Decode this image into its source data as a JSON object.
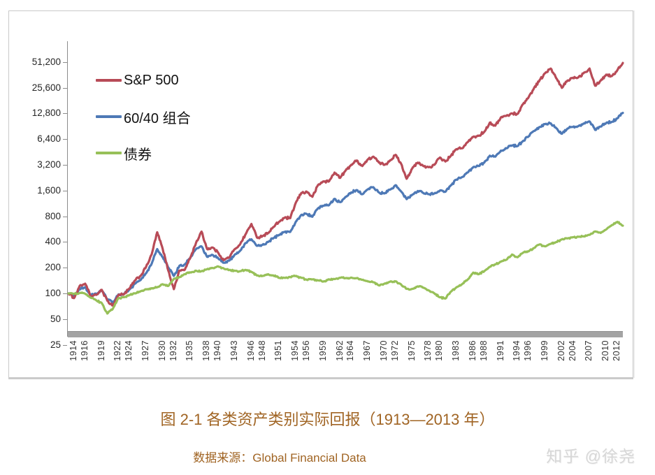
{
  "figure": {
    "caption": "图 2-1 各类资产类别实际回报（1913—2013 年）",
    "source": "数据来源：Global Financial Data",
    "watermark": "知乎 @徐尧"
  },
  "chart_data": {
    "type": "line",
    "title": "",
    "xlabel": "",
    "ylabel": "",
    "y_scale": "log2",
    "grid": false,
    "legend_position": "inside-top-left",
    "base_value_1913": 100,
    "x_range": [
      1913,
      2013
    ],
    "y_ticks": [
      25,
      50,
      100,
      200,
      400,
      800,
      1600,
      3200,
      6400,
      12800,
      25600,
      51200
    ],
    "y_tick_labels": [
      "25",
      "50",
      "100",
      "200",
      "400",
      "800",
      "1,600",
      "3,200",
      "6,400",
      "12,800",
      "25,600",
      "51,200"
    ],
    "x_ticks": [
      1914,
      1916,
      1919,
      1922,
      1924,
      1927,
      1930,
      1932,
      1935,
      1938,
      1940,
      1943,
      1946,
      1948,
      1951,
      1954,
      1956,
      1959,
      1962,
      1964,
      1967,
      1970,
      1972,
      1975,
      1978,
      1980,
      1983,
      1986,
      1988,
      1991,
      1994,
      1996,
      1999,
      2002,
      2004,
      2007,
      2010,
      2012
    ],
    "series": [
      {
        "name": "S&P 500",
        "color": "#b84b57",
        "x_start": 1913,
        "x_step": 1,
        "values": [
          100,
          88,
          122,
          130,
          92,
          96,
          110,
          82,
          72,
          96,
          98,
          114,
          142,
          160,
          205,
          285,
          520,
          330,
          185,
          112,
          185,
          190,
          265,
          390,
          530,
          330,
          345,
          300,
          245,
          265,
          330,
          380,
          500,
          650,
          450,
          470,
          510,
          600,
          690,
          770,
          760,
          1150,
          1500,
          1550,
          1350,
          1850,
          2050,
          2050,
          2600,
          2250,
          2750,
          3200,
          3600,
          3100,
          3700,
          4000,
          3400,
          3200,
          3600,
          4200,
          3300,
          2200,
          2900,
          3400,
          3100,
          3000,
          3200,
          3900,
          3500,
          4100,
          4900,
          5000,
          5900,
          6800,
          7000,
          7800,
          10000,
          9200,
          11500,
          12000,
          12800,
          12600,
          16500,
          19800,
          25500,
          31500,
          38000,
          43000,
          33000,
          25500,
          31000,
          33500,
          34000,
          38500,
          43000,
          27000,
          31000,
          36500,
          35000,
          41000,
          50000
        ]
      },
      {
        "name": "60/40 组合",
        "color": "#4e79b6",
        "x_start": 1913,
        "x_step": 1,
        "values": [
          100,
          93,
          112,
          118,
          95,
          99,
          108,
          85,
          78,
          97,
          99,
          111,
          130,
          143,
          172,
          222,
          330,
          265,
          200,
          160,
          210,
          218,
          262,
          330,
          355,
          268,
          282,
          258,
          228,
          242,
          285,
          318,
          390,
          430,
          360,
          370,
          400,
          445,
          485,
          525,
          525,
          690,
          830,
          850,
          790,
          990,
          1060,
          1080,
          1280,
          1170,
          1350,
          1520,
          1620,
          1450,
          1650,
          1750,
          1520,
          1480,
          1640,
          1850,
          1560,
          1270,
          1430,
          1580,
          1500,
          1450,
          1480,
          1600,
          1550,
          1850,
          2150,
          2300,
          2600,
          3000,
          3100,
          3400,
          4100,
          4000,
          4700,
          5000,
          5400,
          5300,
          6100,
          6900,
          8000,
          8900,
          9600,
          9800,
          8600,
          7400,
          8500,
          8900,
          9100,
          9800,
          10300,
          8200,
          9000,
          9900,
          10200,
          11200,
          13000
        ]
      },
      {
        "name": "债券",
        "color": "#97c058",
        "x_start": 1913,
        "x_step": 1,
        "values": [
          100,
          99,
          101,
          99,
          89,
          83,
          77,
          58,
          66,
          88,
          90,
          96,
          100,
          106,
          112,
          114,
          118,
          128,
          122,
          148,
          155,
          168,
          176,
          184,
          182,
          192,
          198,
          207,
          196,
          188,
          184,
          182,
          188,
          178,
          162,
          160,
          168,
          162,
          152,
          152,
          155,
          160,
          152,
          144,
          146,
          142,
          138,
          146,
          147,
          152,
          151,
          153,
          151,
          144,
          138,
          135,
          124,
          130,
          137,
          138,
          127,
          113,
          113,
          121,
          117,
          108,
          100,
          90,
          87,
          105,
          118,
          128,
          145,
          175,
          168,
          182,
          205,
          218,
          235,
          248,
          285,
          265,
          300,
          310,
          340,
          375,
          355,
          380,
          400,
          430,
          440,
          455,
          460,
          465,
          485,
          530,
          510,
          560,
          630,
          690,
          620
        ]
      }
    ]
  }
}
